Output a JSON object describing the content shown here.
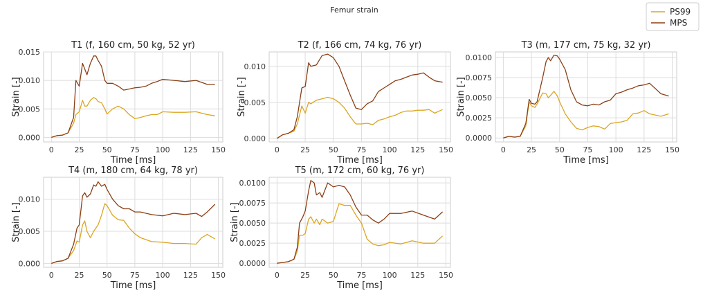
{
  "figure": {
    "title": "Femur strain"
  },
  "legend": [
    {
      "name": "PS99",
      "color": "#dba520"
    },
    {
      "name": "MPS",
      "color": "#8b3e13"
    }
  ],
  "colors": {
    "grid": "#dcdcdc",
    "axes": "#cccccc"
  },
  "chart_data": [
    {
      "type": "line",
      "title": "T1 (f, 160 cm, 50 kg, 52 yr)",
      "xlabel": "Time [ms]",
      "ylabel": "Strain [-]",
      "xlim": [
        -7,
        154
      ],
      "ylim": [
        -0.0008,
        0.015
      ],
      "xticks": [
        0,
        25,
        50,
        75,
        100,
        125,
        150
      ],
      "xtick_labels": [
        "0",
        "25",
        "50",
        "75",
        "100",
        "125",
        "150"
      ],
      "yticks": [
        0,
        0.005,
        0.01,
        0.015
      ],
      "ytick_labels": [
        "0.000",
        "0.005",
        "0.010",
        "0.015"
      ],
      "x": [
        0,
        5,
        10,
        15,
        20,
        22,
        25,
        28,
        30,
        32,
        35,
        38,
        40,
        42,
        45,
        48,
        50,
        55,
        60,
        65,
        70,
        75,
        80,
        85,
        90,
        95,
        100,
        110,
        120,
        130,
        140,
        147
      ],
      "series": [
        {
          "name": "PS99",
          "values": [
            0,
            0.0003,
            0.0004,
            0.0008,
            0.0025,
            0.004,
            0.0045,
            0.0065,
            0.0055,
            0.0055,
            0.0065,
            0.007,
            0.0068,
            0.0063,
            0.0061,
            0.005,
            0.0041,
            0.005,
            0.0055,
            0.005,
            0.004,
            0.0033,
            0.0035,
            0.0038,
            0.004,
            0.004,
            0.0045,
            0.0044,
            0.0044,
            0.0045,
            0.004,
            0.0038
          ]
        },
        {
          "name": "MPS",
          "values": [
            0,
            0.0003,
            0.0004,
            0.0008,
            0.0035,
            0.01,
            0.009,
            0.013,
            0.012,
            0.011,
            0.013,
            0.0143,
            0.0143,
            0.0135,
            0.0125,
            0.01,
            0.0095,
            0.0095,
            0.009,
            0.0083,
            0.0085,
            0.0087,
            0.0088,
            0.009,
            0.0095,
            0.0098,
            0.0102,
            0.01,
            0.0098,
            0.01,
            0.0093,
            0.0093
          ]
        }
      ]
    },
    {
      "type": "line",
      "title": "T2 (f, 166 cm, 74 kg, 76 yr)",
      "xlabel": "Time [ms]",
      "ylabel": "Strain [-]",
      "xlim": [
        -7,
        154
      ],
      "ylim": [
        -0.0005,
        0.012
      ],
      "xticks": [
        0,
        25,
        50,
        75,
        100,
        125,
        150
      ],
      "xtick_labels": [
        "0",
        "25",
        "50",
        "75",
        "100",
        "125",
        "150"
      ],
      "yticks": [
        0,
        0.005,
        0.01
      ],
      "ytick_labels": [
        "0.000",
        "0.005",
        "0.010"
      ],
      "x": [
        0,
        5,
        10,
        15,
        18,
        22,
        25,
        28,
        30,
        35,
        40,
        45,
        50,
        55,
        60,
        65,
        70,
        75,
        80,
        85,
        90,
        95,
        100,
        105,
        110,
        115,
        120,
        125,
        130,
        135,
        140,
        147
      ],
      "series": [
        {
          "name": "PS99",
          "values": [
            0,
            0.0005,
            0.0007,
            0.001,
            0.002,
            0.0045,
            0.0035,
            0.005,
            0.0048,
            0.0053,
            0.0055,
            0.0057,
            0.0055,
            0.005,
            0.0042,
            0.003,
            0.002,
            0.002,
            0.0021,
            0.0019,
            0.0025,
            0.0027,
            0.003,
            0.0032,
            0.0036,
            0.0038,
            0.0038,
            0.0039,
            0.0039,
            0.004,
            0.0035,
            0.004
          ]
        },
        {
          "name": "MPS",
          "values": [
            0,
            0.0005,
            0.0007,
            0.0012,
            0.003,
            0.007,
            0.0072,
            0.0105,
            0.01,
            0.0102,
            0.0115,
            0.0117,
            0.0112,
            0.01,
            0.008,
            0.006,
            0.0042,
            0.004,
            0.0048,
            0.0052,
            0.0065,
            0.007,
            0.0075,
            0.008,
            0.0082,
            0.0085,
            0.0088,
            0.0089,
            0.0091,
            0.0085,
            0.008,
            0.0078
          ]
        }
      ]
    },
    {
      "type": "line",
      "title": "T3 (m, 177 cm, 75 kg, 32 yr)",
      "xlabel": "Time [ms]",
      "ylabel": "Strain [-]",
      "xlim": [
        -7,
        154
      ],
      "ylim": [
        -0.0005,
        0.0107
      ],
      "xticks": [
        0,
        25,
        50,
        75,
        100,
        125,
        150
      ],
      "xtick_labels": [
        "0",
        "25",
        "50",
        "75",
        "100",
        "125",
        "150"
      ],
      "yticks": [
        0,
        0.0025,
        0.005,
        0.0075,
        0.01
      ],
      "ytick_labels": [
        "0.0000",
        "0.0025",
        "0.0050",
        "0.0075",
        "0.0100"
      ],
      "x": [
        0,
        5,
        10,
        15,
        20,
        23,
        25,
        28,
        30,
        35,
        38,
        40,
        42,
        45,
        48,
        50,
        55,
        60,
        65,
        70,
        75,
        80,
        85,
        90,
        95,
        100,
        105,
        110,
        115,
        120,
        125,
        130,
        140,
        147
      ],
      "series": [
        {
          "name": "PS99",
          "values": [
            0,
            0.0002,
            0.0001,
            0.0002,
            0.0015,
            0.0045,
            0.004,
            0.0038,
            0.0042,
            0.0056,
            0.0055,
            0.005,
            0.0053,
            0.0058,
            0.0052,
            0.0045,
            0.003,
            0.002,
            0.0012,
            0.001,
            0.0013,
            0.0015,
            0.0014,
            0.0011,
            0.0018,
            0.0019,
            0.002,
            0.0022,
            0.003,
            0.0031,
            0.0034,
            0.003,
            0.0027,
            0.003
          ]
        },
        {
          "name": "MPS",
          "values": [
            0,
            0.0002,
            0.0001,
            0.0002,
            0.0018,
            0.0048,
            0.0043,
            0.0042,
            0.0045,
            0.0075,
            0.0095,
            0.01,
            0.0096,
            0.0103,
            0.0102,
            0.0098,
            0.0085,
            0.006,
            0.0045,
            0.0041,
            0.004,
            0.0042,
            0.0041,
            0.0045,
            0.0047,
            0.0055,
            0.0057,
            0.006,
            0.0062,
            0.0065,
            0.0066,
            0.0068,
            0.0055,
            0.0052
          ]
        }
      ]
    },
    {
      "type": "line",
      "title": "T4 (m, 180 cm, 64 kg, 78 yr)",
      "xlabel": "Time [ms]",
      "ylabel": "Strain [-]",
      "xlim": [
        -7,
        154
      ],
      "ylim": [
        -0.0006,
        0.0134
      ],
      "xticks": [
        0,
        25,
        50,
        75,
        100,
        125,
        150
      ],
      "xtick_labels": [
        "0",
        "25",
        "50",
        "75",
        "100",
        "125",
        "150"
      ],
      "yticks": [
        0,
        0.005,
        0.01
      ],
      "ytick_labels": [
        "0.000",
        "0.005",
        "0.010"
      ],
      "x": [
        0,
        5,
        10,
        15,
        20,
        23,
        25,
        28,
        30,
        32,
        35,
        38,
        40,
        42,
        45,
        48,
        50,
        55,
        60,
        65,
        70,
        75,
        80,
        90,
        100,
        110,
        120,
        130,
        135,
        140,
        147
      ],
      "series": [
        {
          "name": "PS99",
          "values": [
            0,
            0.0003,
            0.0004,
            0.0008,
            0.002,
            0.0035,
            0.0033,
            0.006,
            0.0066,
            0.005,
            0.004,
            0.005,
            0.0055,
            0.006,
            0.0075,
            0.0093,
            0.009,
            0.0075,
            0.0068,
            0.0067,
            0.0055,
            0.0046,
            0.004,
            0.0034,
            0.0033,
            0.0031,
            0.0031,
            0.003,
            0.004,
            0.0045,
            0.0038
          ]
        },
        {
          "name": "MPS",
          "values": [
            0,
            0.0003,
            0.0004,
            0.0008,
            0.003,
            0.0055,
            0.006,
            0.0105,
            0.011,
            0.0103,
            0.0108,
            0.0122,
            0.012,
            0.0127,
            0.012,
            0.0123,
            0.0115,
            0.01,
            0.009,
            0.0085,
            0.0085,
            0.008,
            0.008,
            0.0076,
            0.0074,
            0.0078,
            0.0076,
            0.0078,
            0.0073,
            0.008,
            0.0092
          ]
        }
      ]
    },
    {
      "type": "line",
      "title": "T5 (m, 172 cm, 60 kg, 76 yr)",
      "xlabel": "Time [ms]",
      "ylabel": "Strain [-]",
      "xlim": [
        -7,
        154
      ],
      "ylim": [
        -0.0005,
        0.0107
      ],
      "xticks": [
        0,
        25,
        50,
        75,
        100,
        125,
        150
      ],
      "xtick_labels": [
        "0",
        "25",
        "50",
        "75",
        "100",
        "125",
        "150"
      ],
      "yticks": [
        0,
        0.0025,
        0.005,
        0.0075,
        0.01
      ],
      "ytick_labels": [
        "0.0000",
        "0.0025",
        "0.0050",
        "0.0075",
        "0.0100"
      ],
      "x": [
        0,
        5,
        10,
        15,
        18,
        20,
        23,
        25,
        28,
        30,
        33,
        35,
        38,
        40,
        45,
        50,
        55,
        60,
        65,
        70,
        75,
        80,
        85,
        90,
        95,
        100,
        110,
        120,
        130,
        140,
        147
      ],
      "series": [
        {
          "name": "PS99",
          "values": [
            0,
            0.0001,
            0.0002,
            0.0005,
            0.0015,
            0.0035,
            0.0035,
            0.0037,
            0.0055,
            0.0058,
            0.005,
            0.0055,
            0.0048,
            0.0055,
            0.005,
            0.0052,
            0.0074,
            0.0072,
            0.0072,
            0.006,
            0.005,
            0.003,
            0.0024,
            0.0022,
            0.0023,
            0.0026,
            0.0024,
            0.0028,
            0.0025,
            0.0025,
            0.0034
          ]
        },
        {
          "name": "MPS",
          "values": [
            0,
            0.0001,
            0.0002,
            0.0005,
            0.002,
            0.005,
            0.0058,
            0.0065,
            0.009,
            0.0103,
            0.01,
            0.0085,
            0.0088,
            0.0082,
            0.01,
            0.0095,
            0.0097,
            0.0095,
            0.0085,
            0.007,
            0.006,
            0.006,
            0.0054,
            0.005,
            0.0055,
            0.0062,
            0.0062,
            0.0065,
            0.006,
            0.0055,
            0.0064
          ]
        }
      ]
    }
  ]
}
